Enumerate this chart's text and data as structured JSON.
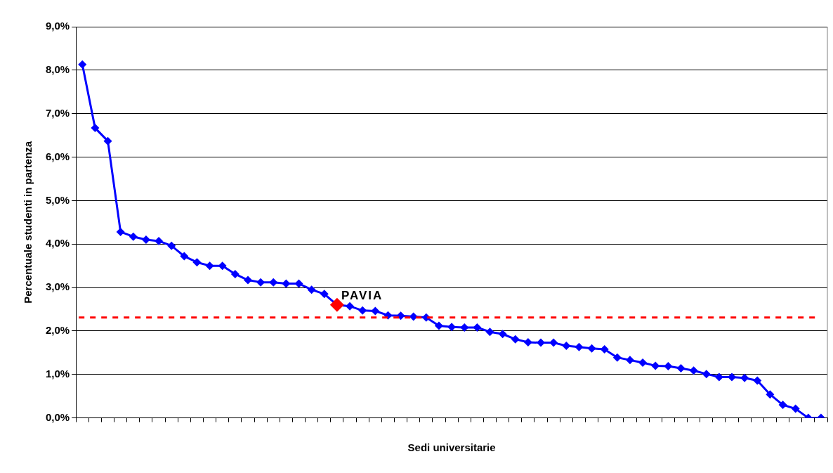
{
  "chart_data": {
    "type": "line",
    "xlabel": "Sedi universitarie",
    "ylabel": "Percentuale studenti in partenza",
    "categories": [
      null,
      null,
      null,
      null,
      null,
      null,
      null,
      null,
      null,
      null,
      null,
      null,
      null,
      null,
      null,
      null,
      null,
      null,
      null,
      null,
      null,
      null,
      null,
      null,
      null,
      null,
      null,
      null,
      null,
      null,
      null,
      null,
      null,
      null,
      null,
      null,
      null,
      null,
      null,
      null,
      null,
      null,
      null,
      null,
      null,
      null,
      null,
      null,
      null,
      null,
      null,
      null,
      null,
      null,
      null,
      null,
      null,
      null,
      null
    ],
    "series": [
      {
        "color": "#0000ff",
        "values": [
          8.13,
          6.67,
          6.37,
          4.28,
          4.17,
          4.1,
          4.07,
          3.96,
          3.72,
          3.58,
          3.5,
          3.5,
          3.31,
          3.17,
          3.12,
          3.12,
          3.09,
          3.09,
          2.95,
          2.85,
          2.6,
          2.57,
          2.47,
          2.46,
          2.36,
          2.35,
          2.33,
          2.31,
          2.12,
          2.09,
          2.08,
          2.08,
          1.98,
          1.93,
          1.81,
          1.74,
          1.73,
          1.73,
          1.66,
          1.63,
          1.6,
          1.58,
          1.39,
          1.33,
          1.27,
          1.2,
          1.19,
          1.14,
          1.09,
          1.01,
          0.94,
          0.94,
          0.92,
          0.86,
          0.54,
          0.3,
          0.21,
          0,
          0
        ],
        "colors": [
          "#0000ff",
          "#0000ff",
          "#0000ff",
          "#0000ff",
          "#0000ff",
          "#0000ff",
          "#0000ff",
          "#0000ff",
          "#0000ff",
          "#0000ff",
          "#0000ff",
          "#0000ff",
          "#0000ff",
          "#0000ff",
          "#0000ff",
          "#0000ff",
          "#0000ff",
          "#0000ff",
          "#0000ff",
          "#0000ff",
          "#ff0000",
          "#0000ff",
          "#0000ff",
          "#0000ff",
          "#0000ff",
          "#0000ff",
          "#0000ff",
          "#0000ff",
          "#0000ff",
          "#0000ff",
          "#0000ff",
          "#0000ff",
          "#0000ff",
          "#0000ff",
          "#0000ff",
          "#0000ff",
          "#0000ff",
          "#0000ff",
          "#0000ff",
          "#0000ff",
          "#0000ff",
          "#0000ff",
          "#0000ff",
          "#0000ff",
          "#0000ff",
          "#0000ff",
          "#0000ff",
          "#0000ff",
          "#0000ff",
          "#0000ff",
          "#0000ff",
          "#0000ff",
          "#0000ff",
          "#0000ff",
          "#0000ff",
          "#0000ff",
          "#0000ff",
          "#0000ff",
          "#0000ff"
        ]
      }
    ],
    "ylim": [
      0,
      9
    ],
    "yticks": [
      {
        "value": 0,
        "label": "0,0%"
      },
      {
        "value": 1,
        "label": "1,0%"
      },
      {
        "value": 2,
        "label": "2,0%"
      },
      {
        "value": 3,
        "label": "3,0%"
      },
      {
        "value": 4,
        "label": "4,0%"
      },
      {
        "value": 5,
        "label": "5,0%"
      },
      {
        "value": 6,
        "label": "6,0%"
      },
      {
        "value": 7,
        "label": "7,0%"
      },
      {
        "value": 8,
        "label": "8,0%"
      },
      {
        "value": 9,
        "label": "9,0%"
      }
    ],
    "ref_lines": [
      {
        "axis": "y",
        "value": 2.31,
        "color": "#ff0000",
        "line_style": "dashed"
      }
    ],
    "annotations": [
      {
        "text": "PAVIA",
        "y": 2.6
      }
    ],
    "grid": "y",
    "legend": false,
    "marker": "diamond",
    "line_style": "solid"
  }
}
